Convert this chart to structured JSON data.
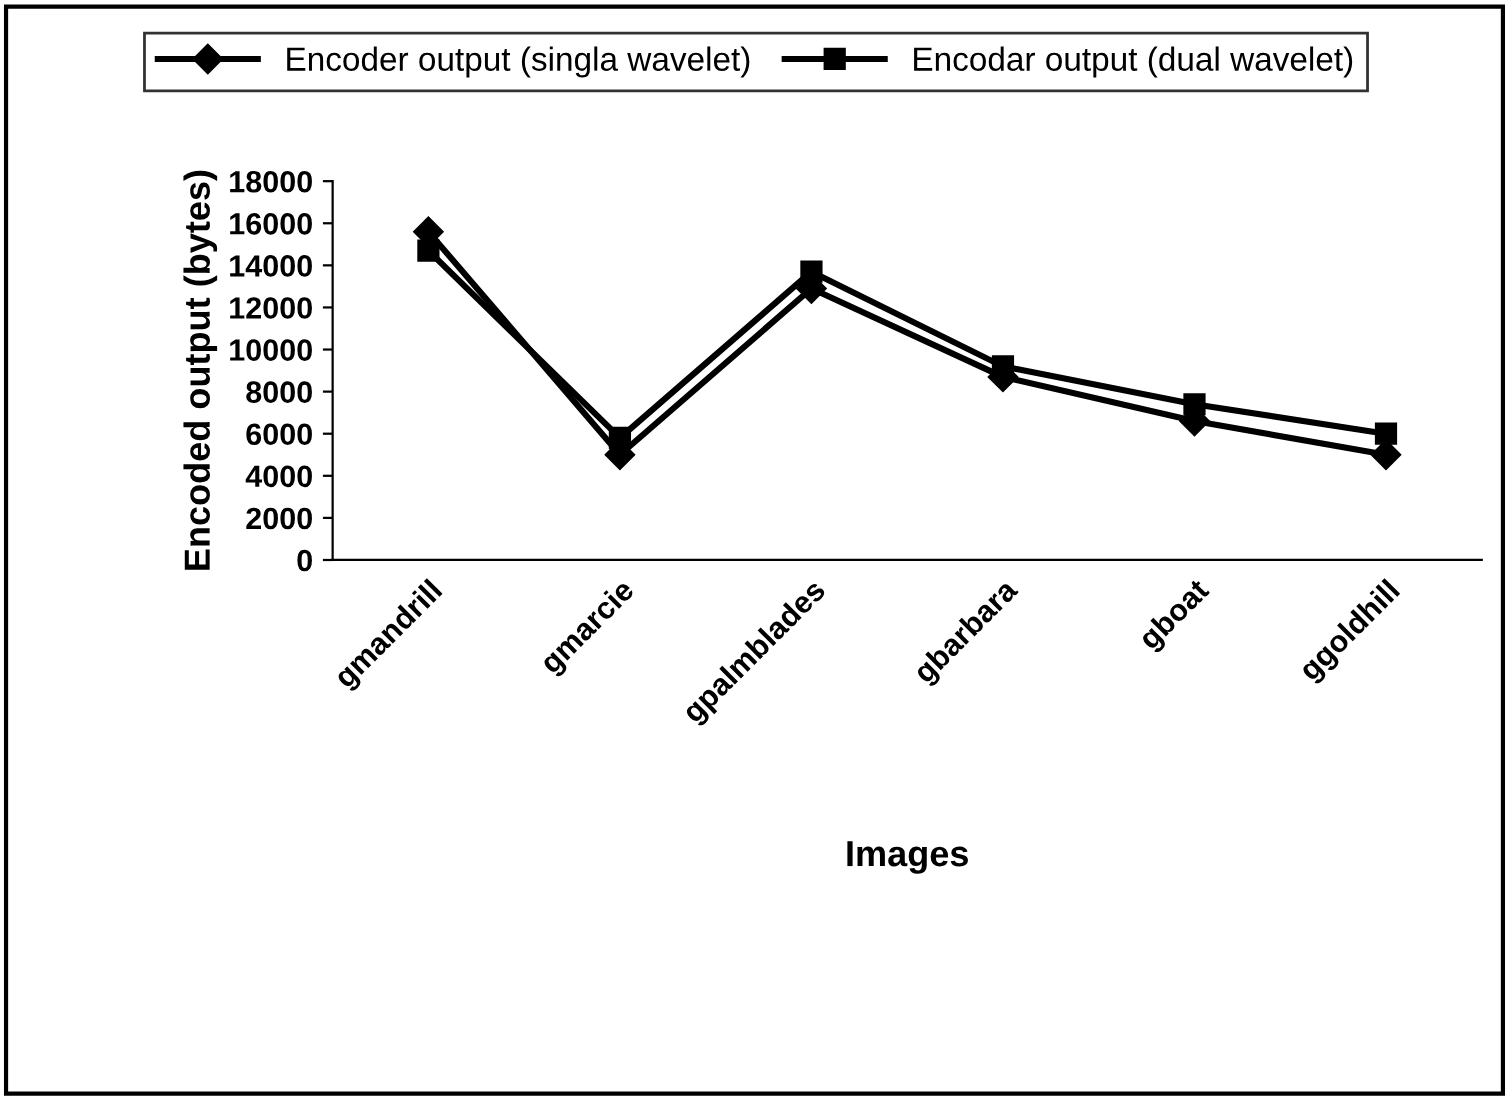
{
  "chart_data": {
    "type": "line",
    "xlabel": "Images",
    "ylabel": "Encoded output (bytes)",
    "categories": [
      "gmandrill",
      "gmarcie",
      "gpalmblades",
      "gbarbara",
      "gboat",
      "ggoldhill"
    ],
    "series": [
      {
        "name": "Encoder output (singla wavelet)",
        "color": "#000000",
        "marker": "diamond",
        "values": [
          15600,
          5000,
          12900,
          8700,
          6600,
          5000
        ]
      },
      {
        "name": "Encodar output (dual wavelet)",
        "color": "#000000",
        "marker": "square",
        "values": [
          14700,
          5800,
          13700,
          9200,
          7400,
          6000
        ]
      }
    ],
    "ylim": [
      0,
      18000
    ],
    "yticks": [
      0,
      2000,
      4000,
      6000,
      8000,
      10000,
      12000,
      14000,
      16000,
      18000
    ],
    "grid": false,
    "legend": "top",
    "line_style": "solid"
  }
}
